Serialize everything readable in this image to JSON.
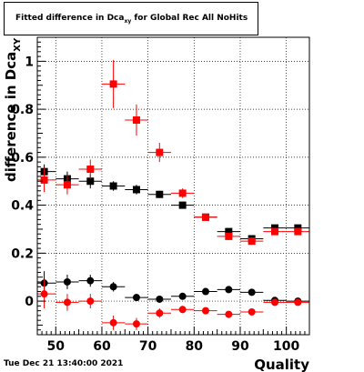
{
  "title": {
    "prefix": "Fitted difference in Dca",
    "subscript": "xy",
    "suffix": " for Global Rec All NoHits"
  },
  "timestamp": "Tue Dec 21 13:40:00 2021",
  "chart_data": {
    "type": "scatter",
    "xlabel": "Quality",
    "ylabel": "difference in Dca",
    "ylabel_subscript": "XY",
    "xlim": [
      46,
      105
    ],
    "ylim": [
      -0.14,
      1.1
    ],
    "xticks": [
      50,
      60,
      70,
      80,
      90,
      100
    ],
    "yticks": [
      0,
      0.2,
      0.4,
      0.6,
      0.8,
      1
    ],
    "ytick_labels": [
      "0",
      "0.2",
      "0.4",
      "0.6",
      "0.8",
      "1"
    ],
    "grid": true,
    "x_halfwidth": 2.5,
    "series": [
      {
        "marker": "square",
        "color": "#000000",
        "points": [
          {
            "x": 47.5,
            "y": 0.54,
            "err": 0.03
          },
          {
            "x": 52.5,
            "y": 0.51,
            "err": 0.03
          },
          {
            "x": 57.5,
            "y": 0.5,
            "err": 0.03
          },
          {
            "x": 62.5,
            "y": 0.48,
            "err": 0.02
          },
          {
            "x": 67.5,
            "y": 0.465,
            "err": 0.02
          },
          {
            "x": 72.5,
            "y": 0.445,
            "err": 0.015
          },
          {
            "x": 77.5,
            "y": 0.4,
            "err": 0.012
          },
          {
            "x": 82.5,
            "y": 0.35,
            "err": 0.012
          },
          {
            "x": 87.5,
            "y": 0.29,
            "err": 0.012
          },
          {
            "x": 92.5,
            "y": 0.26,
            "err": 0.012
          },
          {
            "x": 97.5,
            "y": 0.305,
            "err": 0.012
          },
          {
            "x": 102.5,
            "y": 0.305,
            "err": 0.012
          }
        ]
      },
      {
        "marker": "square",
        "color": "#ff0000",
        "points": [
          {
            "x": 47.5,
            "y": 0.505,
            "err": 0.05
          },
          {
            "x": 52.5,
            "y": 0.485,
            "err": 0.04
          },
          {
            "x": 57.5,
            "y": 0.55,
            "err": 0.04
          },
          {
            "x": 62.5,
            "y": 0.905,
            "err": 0.1
          },
          {
            "x": 67.5,
            "y": 0.755,
            "err": 0.065
          },
          {
            "x": 72.5,
            "y": 0.62,
            "err": 0.04
          },
          {
            "x": 77.5,
            "y": 0.45,
            "err": 0.02
          },
          {
            "x": 82.5,
            "y": 0.35,
            "err": 0.015
          },
          {
            "x": 87.5,
            "y": 0.27,
            "err": 0.015
          },
          {
            "x": 92.5,
            "y": 0.25,
            "err": 0.015
          },
          {
            "x": 97.5,
            "y": 0.29,
            "err": 0.015
          },
          {
            "x": 102.5,
            "y": 0.29,
            "err": 0.012
          }
        ]
      },
      {
        "marker": "circle",
        "color": "#000000",
        "points": [
          {
            "x": 47.5,
            "y": 0.075,
            "err": 0.05
          },
          {
            "x": 52.5,
            "y": 0.08,
            "err": 0.03
          },
          {
            "x": 57.5,
            "y": 0.085,
            "err": 0.025
          },
          {
            "x": 62.5,
            "y": 0.06,
            "err": 0.02
          },
          {
            "x": 67.5,
            "y": 0.015,
            "err": 0.015
          },
          {
            "x": 72.5,
            "y": 0.008,
            "err": 0.012
          },
          {
            "x": 77.5,
            "y": 0.02,
            "err": 0.012
          },
          {
            "x": 82.5,
            "y": 0.04,
            "err": 0.01
          },
          {
            "x": 87.5,
            "y": 0.048,
            "err": 0.01
          },
          {
            "x": 92.5,
            "y": 0.037,
            "err": 0.01
          },
          {
            "x": 97.5,
            "y": 0.003,
            "err": 0.01
          },
          {
            "x": 102.5,
            "y": 0.0,
            "err": 0.01
          }
        ]
      },
      {
        "marker": "circle",
        "color": "#ff0000",
        "points": [
          {
            "x": 47.5,
            "y": 0.03,
            "err": 0.06
          },
          {
            "x": 52.5,
            "y": -0.005,
            "err": 0.035
          },
          {
            "x": 57.5,
            "y": 0.0,
            "err": 0.03
          },
          {
            "x": 62.5,
            "y": -0.09,
            "err": 0.03
          },
          {
            "x": 67.5,
            "y": -0.095,
            "err": 0.025
          },
          {
            "x": 72.5,
            "y": -0.05,
            "err": 0.02
          },
          {
            "x": 77.5,
            "y": -0.035,
            "err": 0.015
          },
          {
            "x": 82.5,
            "y": -0.04,
            "err": 0.012
          },
          {
            "x": 87.5,
            "y": -0.055,
            "err": 0.012
          },
          {
            "x": 92.5,
            "y": -0.045,
            "err": 0.012
          },
          {
            "x": 97.5,
            "y": -0.005,
            "err": 0.012
          },
          {
            "x": 102.5,
            "y": -0.005,
            "err": 0.01
          }
        ]
      }
    ]
  }
}
